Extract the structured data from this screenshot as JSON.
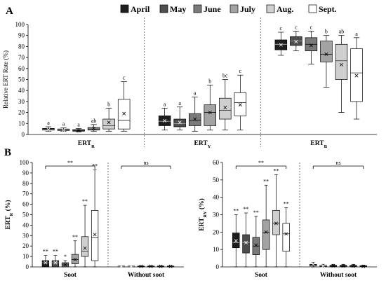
{
  "figure": {
    "panel_a_label": "A",
    "panel_b_label": "B",
    "legend": [
      "April",
      "May",
      "June",
      "July",
      "Aug.",
      "Sept."
    ],
    "legend_colors": [
      "#1e1e1e",
      "#4d4d4d",
      "#7a7a7a",
      "#a3a3a3",
      "#cfcfcf",
      "#ffffff"
    ]
  },
  "chart_data": [
    {
      "type": "box",
      "panel": "A",
      "ylabel": "Relative ERT Rate (%)",
      "ylim": [
        0,
        100
      ],
      "yticks": [
        0,
        10,
        20,
        30,
        40,
        50,
        60,
        70,
        80,
        90,
        100
      ],
      "grid": false,
      "legend_position": "top",
      "groups": [
        {
          "label_main": "ERT",
          "label_sub": "R",
          "boxes": [
            {
              "month": "April",
              "min": 3,
              "q1": 4,
              "median": 4.5,
              "q3": 5.5,
              "max": 7,
              "mean": 4.5,
              "sig": "a"
            },
            {
              "month": "May",
              "min": 3,
              "q1": 3.5,
              "median": 4,
              "q3": 5,
              "max": 6,
              "mean": 4,
              "sig": "a"
            },
            {
              "month": "June",
              "min": 2.5,
              "q1": 3,
              "median": 3.5,
              "q3": 4.5,
              "max": 5.5,
              "mean": 3.5,
              "sig": "a"
            },
            {
              "month": "July",
              "min": 3,
              "q1": 4,
              "median": 5,
              "q3": 6.5,
              "max": 9,
              "mean": 5.5,
              "sig": "ab"
            },
            {
              "month": "Aug.",
              "min": 3,
              "q1": 5,
              "median": 8,
              "q3": 14,
              "max": 24,
              "mean": 11,
              "sig": "b"
            },
            {
              "month": "Sept.",
              "min": 3,
              "q1": 5,
              "median": 13,
              "q3": 32,
              "max": 48,
              "mean": 19,
              "sig": "c"
            }
          ]
        },
        {
          "label_main": "ERT",
          "label_sub": "Y",
          "boxes": [
            {
              "month": "April",
              "min": 4,
              "q1": 8,
              "median": 12,
              "q3": 17,
              "max": 24,
              "mean": 12.5,
              "sig": "a"
            },
            {
              "month": "May",
              "min": 4,
              "q1": 7,
              "median": 10,
              "q3": 14,
              "max": 25,
              "mean": 11,
              "sig": "a"
            },
            {
              "month": "June",
              "min": 3,
              "q1": 8,
              "median": 13,
              "q3": 19,
              "max": 34,
              "mean": 14,
              "sig": "a"
            },
            {
              "month": "July",
              "min": 4,
              "q1": 8,
              "median": 20,
              "q3": 27,
              "max": 45,
              "mean": 20,
              "sig": "b"
            },
            {
              "month": "Aug.",
              "min": 4,
              "q1": 14,
              "median": 22,
              "q3": 33,
              "max": 50,
              "mean": 24.5,
              "sig": "bc"
            },
            {
              "month": "Sept.",
              "min": 4,
              "q1": 17,
              "median": 29,
              "q3": 38,
              "max": 54,
              "mean": 27,
              "sig": "c"
            }
          ]
        },
        {
          "label_main": "ERT",
          "label_sub": "B",
          "boxes": [
            {
              "month": "April",
              "min": 72,
              "q1": 77,
              "median": 82,
              "q3": 86,
              "max": 93,
              "mean": 81.5,
              "sig": "c"
            },
            {
              "month": "May",
              "min": 76,
              "q1": 81,
              "median": 85,
              "q3": 89,
              "max": 94,
              "mean": 84.5,
              "sig": "c"
            },
            {
              "month": "June",
              "min": 64,
              "q1": 76,
              "median": 82,
              "q3": 88,
              "max": 94,
              "mean": 81,
              "sig": "c"
            },
            {
              "month": "July",
              "min": 43,
              "q1": 66,
              "median": 73,
              "q3": 85,
              "max": 90,
              "mean": 73,
              "sig": "b"
            },
            {
              "month": "Aug.",
              "min": 20,
              "q1": 50,
              "median": 67,
              "q3": 82,
              "max": 90,
              "mean": 63.5,
              "sig": "ab"
            },
            {
              "month": "Sept.",
              "min": 14,
              "q1": 30,
              "median": 56,
              "q3": 78,
              "max": 88,
              "mean": 53.5,
              "sig": "a"
            }
          ]
        }
      ]
    },
    {
      "type": "box",
      "panel": "B-left",
      "ylabel_main": "ERT",
      "ylabel_sub": "R",
      "ylabel_unit": " (%)",
      "ylim": [
        0,
        100
      ],
      "yticks": [
        0,
        10,
        20,
        30,
        40,
        50,
        60,
        70,
        80,
        90,
        100
      ],
      "grid": false,
      "groups": [
        {
          "label": "Soot",
          "bracket_sig": "**",
          "boxes": [
            {
              "month": "April",
              "min": 0,
              "q1": 0,
              "median": 4,
              "q3": 6,
              "max": 11,
              "mean": 4,
              "sig": "**"
            },
            {
              "month": "May",
              "min": 0,
              "q1": 0,
              "median": 4,
              "q3": 6,
              "max": 11,
              "mean": 4,
              "sig": "**"
            },
            {
              "month": "June",
              "min": 0,
              "q1": 0,
              "median": 2,
              "q3": 4,
              "max": 6,
              "mean": 2,
              "sig": "*"
            },
            {
              "month": "July",
              "min": 0,
              "q1": 3,
              "median": 7,
              "q3": 12,
              "max": 25,
              "mean": 7,
              "sig": "**"
            },
            {
              "month": "Aug.",
              "min": 0,
              "q1": 10,
              "median": 15,
              "q3": 29,
              "max": 59,
              "mean": 18,
              "sig": "**"
            },
            {
              "month": "Sept.",
              "min": 0,
              "q1": 6,
              "median": 28,
              "q3": 54,
              "max": 93,
              "mean": 31,
              "sig": "**"
            }
          ]
        },
        {
          "label": "Without soot",
          "bracket_sig": "ns",
          "boxes": [
            {
              "month": "April",
              "min": 0,
              "q1": 0,
              "median": 0.5,
              "q3": 0.8,
              "max": 1,
              "mean": 0.5,
              "sig": ""
            },
            {
              "month": "May",
              "min": 0,
              "q1": 0,
              "median": 0.5,
              "q3": 0.8,
              "max": 1,
              "mean": 0.5,
              "sig": ""
            },
            {
              "month": "June",
              "min": 0,
              "q1": 0,
              "median": 0.5,
              "q3": 0.8,
              "max": 1,
              "mean": 0.5,
              "sig": ""
            },
            {
              "month": "July",
              "min": 0,
              "q1": 0,
              "median": 0.5,
              "q3": 0.8,
              "max": 1,
              "mean": 0.5,
              "sig": ""
            },
            {
              "month": "Aug.",
              "min": 0,
              "q1": 0,
              "median": 0.5,
              "q3": 0.8,
              "max": 1,
              "mean": 0.5,
              "sig": ""
            },
            {
              "month": "Sept.",
              "min": 0,
              "q1": 0,
              "median": 0.5,
              "q3": 0.8,
              "max": 1,
              "mean": 0.5,
              "sig": ""
            }
          ]
        }
      ]
    },
    {
      "type": "box",
      "panel": "B-right",
      "ylabel_main": "ERT",
      "ylabel_sub": "RY",
      "ylabel_unit": " (%)",
      "ylim": [
        0,
        60
      ],
      "yticks": [
        0,
        10,
        20,
        30,
        40,
        50,
        60
      ],
      "grid": false,
      "groups": [
        {
          "label": "Soot",
          "bracket_sig": "**",
          "boxes": [
            {
              "month": "April",
              "min": 0,
              "q1": 11,
              "median": 14,
              "q3": 19.5,
              "max": 30,
              "mean": 15,
              "sig": "**"
            },
            {
              "month": "May",
              "min": 0,
              "q1": 8,
              "median": 14,
              "q3": 18.5,
              "max": 31,
              "mean": 14,
              "sig": "**"
            },
            {
              "month": "June",
              "min": 0,
              "q1": 7,
              "median": 12,
              "q3": 17,
              "max": 29,
              "mean": 12.5,
              "sig": "**"
            },
            {
              "month": "July",
              "min": 0,
              "q1": 10,
              "median": 20,
              "q3": 27,
              "max": 47,
              "mean": 20,
              "sig": "**"
            },
            {
              "month": "Aug.",
              "min": 0,
              "q1": 18.5,
              "median": 25,
              "q3": 32.5,
              "max": 53,
              "mean": 25,
              "sig": "**"
            },
            {
              "month": "Sept.",
              "min": 0,
              "q1": 9,
              "median": 19,
              "q3": 25,
              "max": 34,
              "mean": 19,
              "sig": "**"
            }
          ]
        },
        {
          "label": "Without soot",
          "bracket_sig": "ns",
          "boxes": [
            {
              "month": "April",
              "min": 0,
              "q1": 0.5,
              "median": 1,
              "q3": 1.5,
              "max": 2.5,
              "mean": 1.5,
              "sig": ""
            },
            {
              "month": "May",
              "min": 0,
              "q1": 0.3,
              "median": 0.6,
              "q3": 0.9,
              "max": 1.5,
              "mean": 0.6,
              "sig": ""
            },
            {
              "month": "June",
              "min": 0,
              "q1": 0.3,
              "median": 0.6,
              "q3": 0.9,
              "max": 1.5,
              "mean": 0.6,
              "sig": ""
            },
            {
              "month": "July",
              "min": 0,
              "q1": 0.3,
              "median": 0.6,
              "q3": 0.9,
              "max": 1.5,
              "mean": 0.5,
              "sig": ""
            },
            {
              "month": "Aug.",
              "min": 0,
              "q1": 0.3,
              "median": 0.6,
              "q3": 0.9,
              "max": 1.5,
              "mean": 0.5,
              "sig": ""
            },
            {
              "month": "Sept.",
              "min": 0,
              "q1": 0.2,
              "median": 0.4,
              "q3": 0.7,
              "max": 1,
              "mean": 0.3,
              "sig": ""
            }
          ]
        }
      ]
    }
  ]
}
